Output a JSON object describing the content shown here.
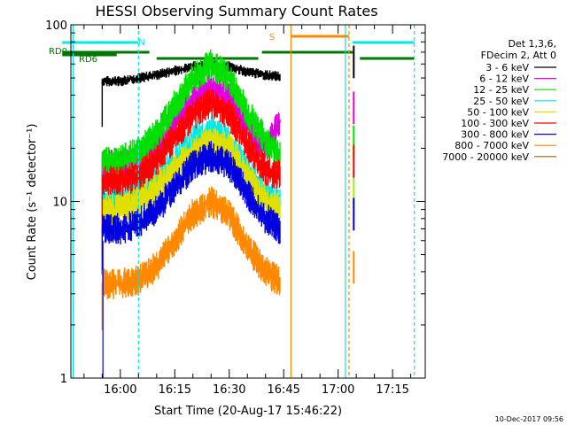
{
  "chart_data": {
    "type": "line",
    "title": "HESSI Observing Summary Count Rates",
    "xlabel": "Start Time (20-Aug-17 15:46:22)",
    "ylabel": "Count Rate (s⁻¹ detector⁻¹)",
    "yscale": "log",
    "ylim": [
      1,
      100
    ],
    "xlim_minutes": [
      15.78,
      27.12
    ],
    "x_unit": "hh:mm",
    "x_ticks": [
      "16:00",
      "16:15",
      "16:30",
      "16:45",
      "17:00",
      "17:15"
    ],
    "y_ticks": [
      "1",
      "10",
      "100"
    ],
    "legend_position": "right",
    "legend_header": [
      "Det 1,3,6,",
      "FDecim 2, Att 0"
    ],
    "timestamp": "10-Dec-2017 09:56",
    "series": [
      {
        "name": "3 - 6 keV",
        "color": "#000000",
        "x": [
          "16:00",
          "16:05",
          "16:10",
          "16:15",
          "16:20",
          "16:25",
          "16:30",
          "16:35",
          "16:40",
          "16:44"
        ],
        "y": [
          48,
          50,
          52,
          55,
          58,
          60,
          58,
          54,
          52,
          51
        ]
      },
      {
        "name": "6 - 12 keV",
        "color": "#e000e0",
        "x": [
          "16:00",
          "16:05",
          "16:10",
          "16:15",
          "16:20",
          "16:25",
          "16:30",
          "16:35",
          "16:40",
          "16:44"
        ],
        "y": [
          16,
          17,
          20,
          27,
          38,
          44,
          38,
          26,
          20,
          28
        ]
      },
      {
        "name": "12 - 25 keV",
        "color": "#00e000",
        "x": [
          "16:00",
          "16:05",
          "16:10",
          "16:15",
          "16:20",
          "16:25",
          "16:30",
          "16:35",
          "16:40",
          "16:44"
        ],
        "y": [
          17,
          19,
          24,
          35,
          50,
          60,
          50,
          32,
          22,
          18
        ]
      },
      {
        "name": "25 - 50 keV",
        "color": "#00e8e8",
        "x": [
          "16:00",
          "16:05",
          "16:10",
          "16:15",
          "16:20",
          "16:25",
          "16:30",
          "16:35",
          "16:40",
          "16:44"
        ],
        "y": [
          10,
          11,
          13,
          17,
          22,
          25,
          22,
          15,
          11,
          10
        ]
      },
      {
        "name": "50 - 100 keV",
        "color": "#e0e000",
        "x": [
          "16:00",
          "16:05",
          "16:10",
          "16:15",
          "16:20",
          "16:25",
          "16:30",
          "16:35",
          "16:40",
          "16:44"
        ],
        "y": [
          9,
          10,
          12,
          15,
          20,
          22,
          20,
          14,
          10,
          9
        ]
      },
      {
        "name": "100 - 300 keV",
        "color": "#ff0000",
        "x": [
          "16:00",
          "16:05",
          "16:10",
          "16:15",
          "16:20",
          "16:25",
          "16:30",
          "16:35",
          "16:40",
          "16:44"
        ],
        "y": [
          13,
          14,
          17,
          23,
          31,
          36,
          31,
          21,
          15,
          14
        ]
      },
      {
        "name": "300 - 800 keV",
        "color": "#0000e0",
        "x": [
          "16:00",
          "16:05",
          "16:10",
          "16:15",
          "16:20",
          "16:25",
          "16:30",
          "16:35",
          "16:40",
          "16:44"
        ],
        "y": [
          7,
          7.5,
          9,
          12,
          16,
          18,
          16,
          11,
          8,
          7
        ]
      },
      {
        "name": "800 - 7000 keV",
        "color": "#ff8800",
        "x": [
          "16:00",
          "16:05",
          "16:10",
          "16:15",
          "16:20",
          "16:25",
          "16:30",
          "16:35",
          "16:40",
          "16:44"
        ],
        "y": [
          3.4,
          3.6,
          4.3,
          6,
          8.5,
          10,
          8.5,
          5.5,
          4,
          3.5
        ]
      },
      {
        "name": "7000 - 20000 keV",
        "color": "#996600",
        "x": [],
        "y": []
      }
    ],
    "annotations": [
      {
        "text": "N",
        "color": "#00e8e8"
      },
      {
        "text": "S",
        "color": "#ff8800"
      },
      {
        "text": "RD0",
        "color": "#007700"
      },
      {
        "text": "RD6",
        "color": "#007700"
      }
    ]
  }
}
